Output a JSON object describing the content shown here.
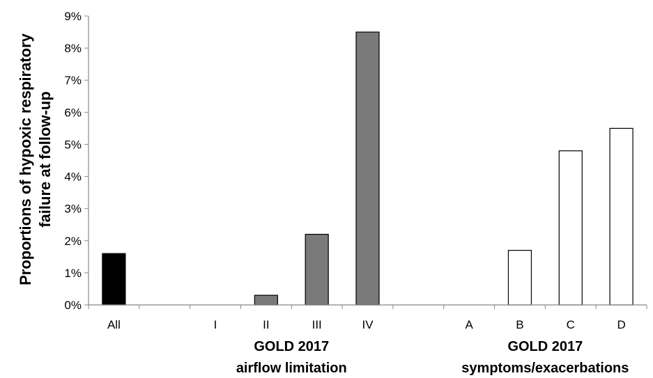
{
  "chart_data": {
    "type": "bar",
    "ylabel": [
      "Proportions of hypoxic respiratory",
      "failure at follow-up"
    ],
    "ylim": [
      0,
      9
    ],
    "yticks": [
      "0%",
      "1%",
      "2%",
      "3%",
      "4%",
      "5%",
      "6%",
      "7%",
      "8%",
      "9%"
    ],
    "categories": [
      "All",
      "",
      "I",
      "II",
      "III",
      "IV",
      "",
      "A",
      "B",
      "C",
      "D"
    ],
    "values": [
      1.6,
      null,
      0,
      0.3,
      2.2,
      8.5,
      null,
      0,
      1.7,
      4.8,
      5.5
    ],
    "bar_colors": [
      "#000000",
      null,
      "#7a7a7a",
      "#7a7a7a",
      "#7a7a7a",
      "#7a7a7a",
      null,
      "#ffffff",
      "#ffffff",
      "#ffffff",
      "#ffffff"
    ],
    "groups": [
      {
        "lines": [
          "GOLD 2017",
          "airflow limitation"
        ],
        "categories": [
          "I",
          "II",
          "III",
          "IV"
        ]
      },
      {
        "lines": [
          "GOLD 2017",
          "symptoms/exacerbations"
        ],
        "categories": [
          "A",
          "B",
          "C",
          "D"
        ]
      }
    ],
    "grid": false,
    "legend": "none"
  }
}
